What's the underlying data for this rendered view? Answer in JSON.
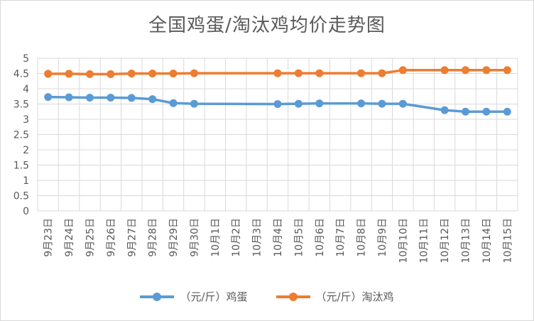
{
  "chart_data": {
    "type": "line",
    "title": "全国鸡蛋/淘汰鸡均价走势图",
    "xlabel": "",
    "ylabel": "",
    "categories": [
      "9月23日",
      "9月24日",
      "9月25日",
      "9月26日",
      "9月27日",
      "9月28日",
      "9月29日",
      "9月30日",
      "10月1日",
      "10月2日",
      "10月3日",
      "10月4日",
      "10月5日",
      "10月6日",
      "10月7日",
      "10月8日",
      "10月9日",
      "10月10日",
      "10月11日",
      "10月12日",
      "10月13日",
      "10月14日",
      "10月15日"
    ],
    "yticks": [
      "0",
      "0.5",
      "1",
      "1.5",
      "2",
      "2.5",
      "3",
      "3.5",
      "4",
      "4.5",
      "5"
    ],
    "ylim": [
      0,
      5
    ],
    "grid": true,
    "legend_position": "bottom",
    "series": [
      {
        "name": "（元/斤）鸡蛋",
        "color": "#5B9BD5",
        "values": [
          3.73,
          3.72,
          3.71,
          3.71,
          3.7,
          3.66,
          3.53,
          3.51,
          null,
          null,
          null,
          3.5,
          3.51,
          3.52,
          null,
          3.52,
          3.51,
          3.51,
          null,
          3.3,
          3.25,
          3.25,
          3.25
        ]
      },
      {
        "name": "（元/斤）淘汰鸡",
        "color": "#ED7D31",
        "values": [
          4.49,
          4.49,
          4.48,
          4.48,
          4.5,
          4.5,
          4.5,
          4.51,
          null,
          null,
          null,
          4.51,
          4.51,
          4.51,
          null,
          4.51,
          4.51,
          4.61,
          null,
          4.61,
          4.61,
          4.61,
          4.61
        ]
      }
    ]
  }
}
